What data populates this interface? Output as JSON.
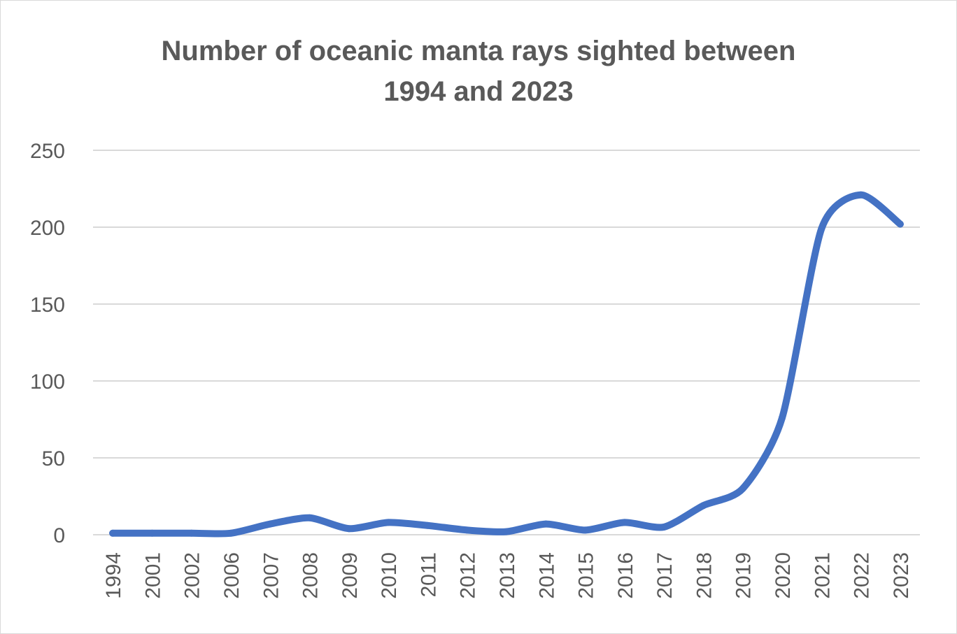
{
  "chart_data": {
    "type": "line",
    "title": "Number of oceanic manta rays sighted between 1994 and 2023",
    "title_lines": [
      "Number of oceanic manta rays sighted between",
      "1994 and 2023"
    ],
    "xlabel": "",
    "ylabel": "",
    "categories": [
      "1994",
      "2001",
      "2002",
      "2006",
      "2007",
      "2008",
      "2009",
      "2010",
      "2011",
      "2012",
      "2013",
      "2014",
      "2015",
      "2016",
      "2017",
      "2018",
      "2019",
      "2020",
      "2021",
      "2022",
      "2023"
    ],
    "series": [
      {
        "values": [
          1,
          1,
          1,
          1,
          7,
          11,
          4,
          8,
          6,
          3,
          2,
          7,
          3,
          8,
          5,
          19,
          30,
          76,
          199,
          221,
          202
        ],
        "color": "#4472C4"
      }
    ],
    "yticks": [
      "0",
      "50",
      "100",
      "150",
      "200",
      "250"
    ],
    "ylim": [
      0,
      250
    ],
    "grid": "horizontal",
    "legend": "none"
  }
}
